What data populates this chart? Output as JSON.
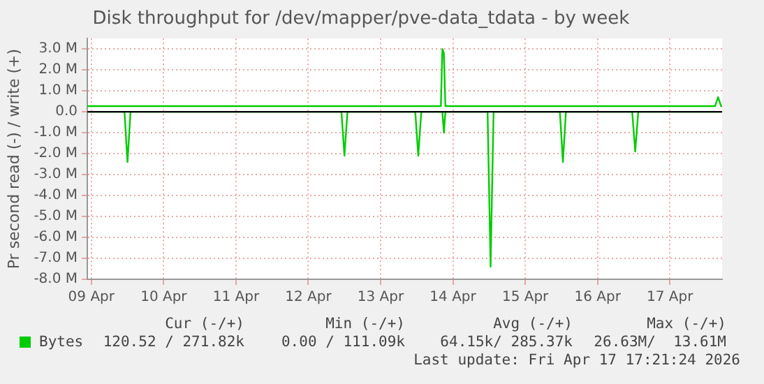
{
  "chart_data": {
    "type": "line",
    "title": "Disk throughput for /dev/mapper/pve-data_tdata - by week",
    "ylabel": "Pr second read (-) / write (+)",
    "xlim": [
      "2026-04-08T22:40",
      "2026-04-17T17:20"
    ],
    "xticks": [
      {
        "value": "2026-04-09",
        "label": "09 Apr"
      },
      {
        "value": "2026-04-10",
        "label": "10 Apr"
      },
      {
        "value": "2026-04-11",
        "label": "11 Apr"
      },
      {
        "value": "2026-04-12",
        "label": "12 Apr"
      },
      {
        "value": "2026-04-13",
        "label": "13 Apr"
      },
      {
        "value": "2026-04-14",
        "label": "14 Apr"
      },
      {
        "value": "2026-04-15",
        "label": "15 Apr"
      },
      {
        "value": "2026-04-16",
        "label": "16 Apr"
      },
      {
        "value": "2026-04-17",
        "label": "17 Apr"
      }
    ],
    "ylim": [
      -8000000,
      3500000
    ],
    "yticks": [
      {
        "value": 3000000,
        "label": "3.0 M"
      },
      {
        "value": 2000000,
        "label": "2.0 M"
      },
      {
        "value": 1000000,
        "label": "1.0 M"
      },
      {
        "value": 0,
        "label": "0.0"
      },
      {
        "value": -1000000,
        "label": "-1.0 M"
      },
      {
        "value": -2000000,
        "label": "-2.0 M"
      },
      {
        "value": -3000000,
        "label": "-3.0 M"
      },
      {
        "value": -4000000,
        "label": "-4.0 M"
      },
      {
        "value": -5000000,
        "label": "-5.0 M"
      },
      {
        "value": -6000000,
        "label": "-6.0 M"
      },
      {
        "value": -7000000,
        "label": "-7.0 M"
      },
      {
        "value": -8000000,
        "label": "-8.0 M"
      }
    ],
    "grid": true,
    "legend": "bottom left",
    "marker": "none",
    "line_style": "solid",
    "ref_lines": [
      {
        "axis": "y",
        "value": 0,
        "color": "#000000"
      }
    ],
    "series": [
      {
        "name": "Bytes",
        "color": "#00cc00",
        "x": [
          "2026-04-08T22:40",
          "2026-04-13T20:00",
          "2026-04-13T20:30",
          "2026-04-13T21:00",
          "2026-04-13T21:30",
          "2026-04-17T15:00",
          "2026-04-17T16:00",
          "2026-04-17T17:00",
          "2026-04-17T17:20"
        ],
        "values": [
          270000,
          270000,
          3000000,
          2800000,
          270000,
          270000,
          700000,
          270000,
          270000
        ]
      },
      {
        "color": "#00cc00",
        "x": [
          "2026-04-08T22:40",
          "2026-04-09T11:00",
          "2026-04-09T12:00",
          "2026-04-09T13:00",
          "2026-04-12T11:00",
          "2026-04-12T12:00",
          "2026-04-12T13:00",
          "2026-04-13T11:30",
          "2026-04-13T12:30",
          "2026-04-13T13:30",
          "2026-04-13T20:30",
          "2026-04-13T21:00",
          "2026-04-13T21:30",
          "2026-04-14T11:30",
          "2026-04-14T12:30",
          "2026-04-14T13:30",
          "2026-04-15T11:30",
          "2026-04-15T12:30",
          "2026-04-15T13:30",
          "2026-04-16T11:30",
          "2026-04-16T12:30",
          "2026-04-16T13:30",
          "2026-04-17T17:20"
        ],
        "values": [
          0,
          0,
          -2400000,
          0,
          0,
          -2100000,
          0,
          0,
          -2100000,
          0,
          0,
          -1000000,
          0,
          0,
          -7400000,
          0,
          0,
          -2400000,
          0,
          0,
          -1900000,
          0,
          0
        ]
      }
    ],
    "annotations": [
      "Cur (-/+)",
      "Min (-/+)",
      "Avg (-/+)",
      "Max (-/+)",
      "120.52 / 271.82k",
      "0.00 / 111.09k",
      "64.15k/ 285.37k",
      "26.63M/  13.61M",
      "Last update: Fri Apr 17 17:21:24 2026"
    ]
  }
}
